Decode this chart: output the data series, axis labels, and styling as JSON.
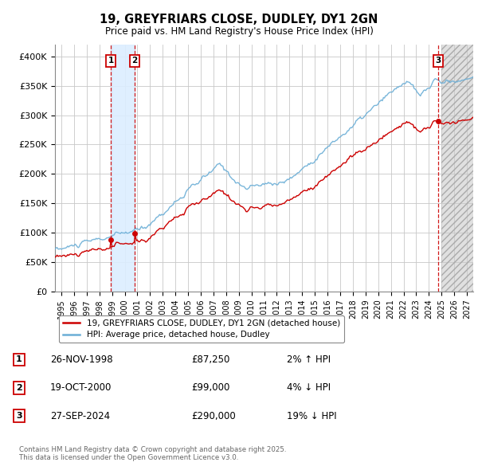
{
  "title": "19, GREYFRIARS CLOSE, DUDLEY, DY1 2GN",
  "subtitle": "Price paid vs. HM Land Registry's House Price Index (HPI)",
  "xlim_start": 1994.5,
  "xlim_end": 2027.5,
  "ylim": [
    0,
    420000
  ],
  "yticks": [
    0,
    50000,
    100000,
    150000,
    200000,
    250000,
    300000,
    350000,
    400000
  ],
  "ytick_labels": [
    "£0",
    "£50K",
    "£100K",
    "£150K",
    "£200K",
    "£250K",
    "£300K",
    "£350K",
    "£400K"
  ],
  "xticks": [
    1995,
    1996,
    1997,
    1998,
    1999,
    2000,
    2001,
    2002,
    2003,
    2004,
    2005,
    2006,
    2007,
    2008,
    2009,
    2010,
    2011,
    2012,
    2013,
    2014,
    2015,
    2016,
    2017,
    2018,
    2019,
    2020,
    2021,
    2022,
    2023,
    2024,
    2025,
    2026,
    2027
  ],
  "sale1_date": 1998.9,
  "sale1_price": 87250,
  "sale2_date": 2000.8,
  "sale2_price": 99000,
  "sale3_date": 2024.75,
  "sale3_price": 290000,
  "legend_line1": "19, GREYFRIARS CLOSE, DUDLEY, DY1 2GN (detached house)",
  "legend_line2": "HPI: Average price, detached house, Dudley",
  "table_rows": [
    {
      "num": "1",
      "date": "26-NOV-1998",
      "price": "£87,250",
      "hpi": "2% ↑ HPI"
    },
    {
      "num": "2",
      "date": "19-OCT-2000",
      "price": "£99,000",
      "hpi": "4% ↓ HPI"
    },
    {
      "num": "3",
      "date": "27-SEP-2024",
      "price": "£290,000",
      "hpi": "19% ↓ HPI"
    }
  ],
  "copyright_text": "Contains HM Land Registry data © Crown copyright and database right 2025.\nThis data is licensed under the Open Government Licence v3.0.",
  "hpi_color": "#6baed6",
  "price_color": "#cc0000",
  "bg_color": "#ffffff",
  "grid_color": "#c8c8c8",
  "sale_vline_color": "#cc0000",
  "between_shade_color": "#dceeff",
  "future_shade_color": "#e0e0e0",
  "future_start": 2025.0
}
